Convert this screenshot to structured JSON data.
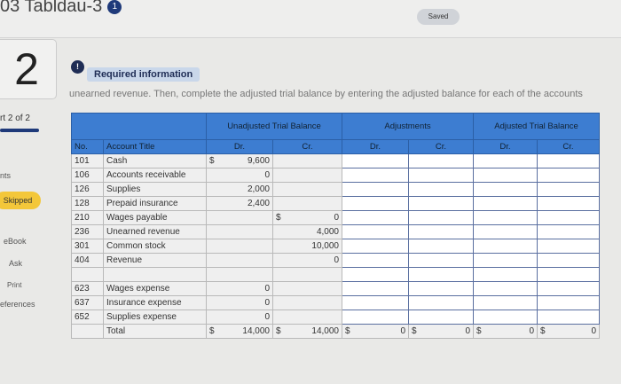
{
  "header": {
    "title": "03 Tabldau-3",
    "info_badge": "1",
    "saved_label": "Saved"
  },
  "question": {
    "number": "2",
    "required_label": "Required information",
    "instructions_fragment": "unearned revenue. Then, complete the adjusted trial balance by entering the adjusted balance for each of the accounts"
  },
  "sidebar": {
    "part": "rt 2 of 2",
    "items": [
      "nts",
      "Skipped",
      "eBook",
      "Ask",
      "Print",
      "eferences"
    ]
  },
  "table": {
    "group_headers": [
      "Unadjusted Trial Balance",
      "Adjustments",
      "Adjusted Trial Balance"
    ],
    "col_headers": [
      "No.",
      "Account Title",
      "Dr.",
      "Cr.",
      "Dr.",
      "Cr.",
      "Dr.",
      "Cr."
    ],
    "rows": [
      {
        "no": "101",
        "title": "Cash",
        "dr_sym": "$",
        "dr": "9,600",
        "cr_sym": "",
        "cr": ""
      },
      {
        "no": "106",
        "title": "Accounts receivable",
        "dr_sym": "",
        "dr": "0",
        "cr_sym": "",
        "cr": ""
      },
      {
        "no": "126",
        "title": "Supplies",
        "dr_sym": "",
        "dr": "2,000",
        "cr_sym": "",
        "cr": ""
      },
      {
        "no": "128",
        "title": "Prepaid insurance",
        "dr_sym": "",
        "dr": "2,400",
        "cr_sym": "",
        "cr": ""
      },
      {
        "no": "210",
        "title": "Wages payable",
        "dr_sym": "",
        "dr": "",
        "cr_sym": "$",
        "cr": "0"
      },
      {
        "no": "236",
        "title": "Unearned revenue",
        "dr_sym": "",
        "dr": "",
        "cr_sym": "",
        "cr": "4,000"
      },
      {
        "no": "301",
        "title": "Common stock",
        "dr_sym": "",
        "dr": "",
        "cr_sym": "",
        "cr": "10,000"
      },
      {
        "no": "404",
        "title": "Revenue",
        "dr_sym": "",
        "dr": "",
        "cr_sym": "",
        "cr": "0"
      },
      {
        "no": "",
        "title": "",
        "dr_sym": "",
        "dr": "",
        "cr_sym": "",
        "cr": ""
      },
      {
        "no": "623",
        "title": "Wages expense",
        "dr_sym": "",
        "dr": "0",
        "cr_sym": "",
        "cr": ""
      },
      {
        "no": "637",
        "title": "Insurance expense",
        "dr_sym": "",
        "dr": "0",
        "cr_sym": "",
        "cr": ""
      },
      {
        "no": "652",
        "title": "Supplies expense",
        "dr_sym": "",
        "dr": "0",
        "cr_sym": "",
        "cr": ""
      }
    ],
    "total": {
      "label": "Total",
      "sym": "$",
      "utb_dr": "14,000",
      "utb_cr": "14,000",
      "adj_dr": "0",
      "adj_cr": "0",
      "atb_dr": "0",
      "atb_cr": "0"
    }
  }
}
